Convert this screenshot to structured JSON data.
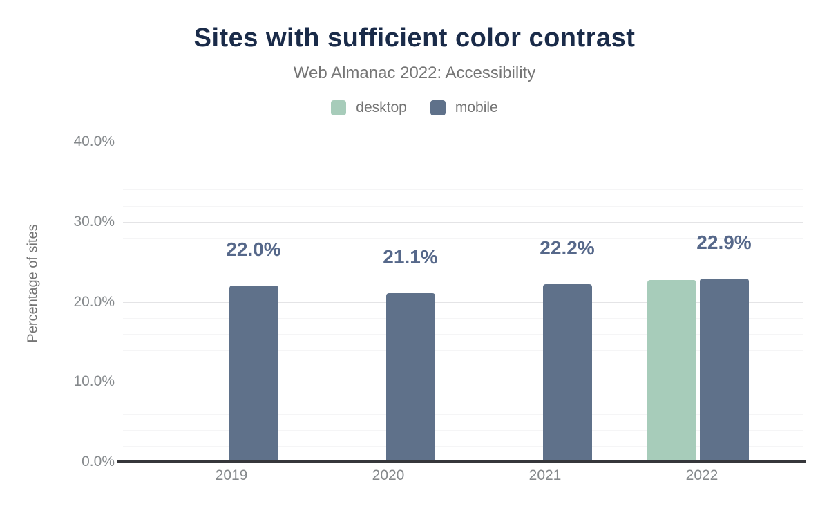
{
  "chart_data": {
    "type": "bar",
    "title": "Sites with sufficient color contrast",
    "subtitle": "Web Almanac 2022: Accessibility",
    "xlabel": "",
    "ylabel": "Percentage of sites",
    "categories": [
      "2019",
      "2020",
      "2021",
      "2022"
    ],
    "series": [
      {
        "name": "desktop",
        "color": "#a7ccba",
        "values": [
          null,
          null,
          null,
          22.7
        ]
      },
      {
        "name": "mobile",
        "color": "#5f718a",
        "values": [
          22.0,
          21.1,
          22.2,
          22.9
        ]
      }
    ],
    "data_labels": {
      "labeled_series": "mobile",
      "values": [
        "22.0%",
        "21.1%",
        "22.2%",
        "22.9%"
      ]
    },
    "ylim": [
      0,
      40
    ],
    "yticks": [
      {
        "value": 0,
        "label": "0.0%"
      },
      {
        "value": 10,
        "label": "10.0%"
      },
      {
        "value": 20,
        "label": "20.0%"
      },
      {
        "value": 30,
        "label": "30.0%"
      },
      {
        "value": 40,
        "label": "40.0%"
      }
    ],
    "grid": {
      "minor_step": 2,
      "major_step": 10,
      "grid_on": true
    },
    "legend": {
      "position": "top",
      "items": [
        {
          "label": "desktop",
          "color": "#a7ccba"
        },
        {
          "label": "mobile",
          "color": "#5f718a"
        }
      ]
    }
  },
  "colors": {
    "title": "#1a2b49",
    "subtitle": "#757575",
    "tick_text": "#85898c",
    "data_label": "#56688a",
    "axis_line": "#36373b",
    "grid_minor": "#f5f5f6",
    "grid_major": "#e4e4e6",
    "background": "#ffffff"
  }
}
